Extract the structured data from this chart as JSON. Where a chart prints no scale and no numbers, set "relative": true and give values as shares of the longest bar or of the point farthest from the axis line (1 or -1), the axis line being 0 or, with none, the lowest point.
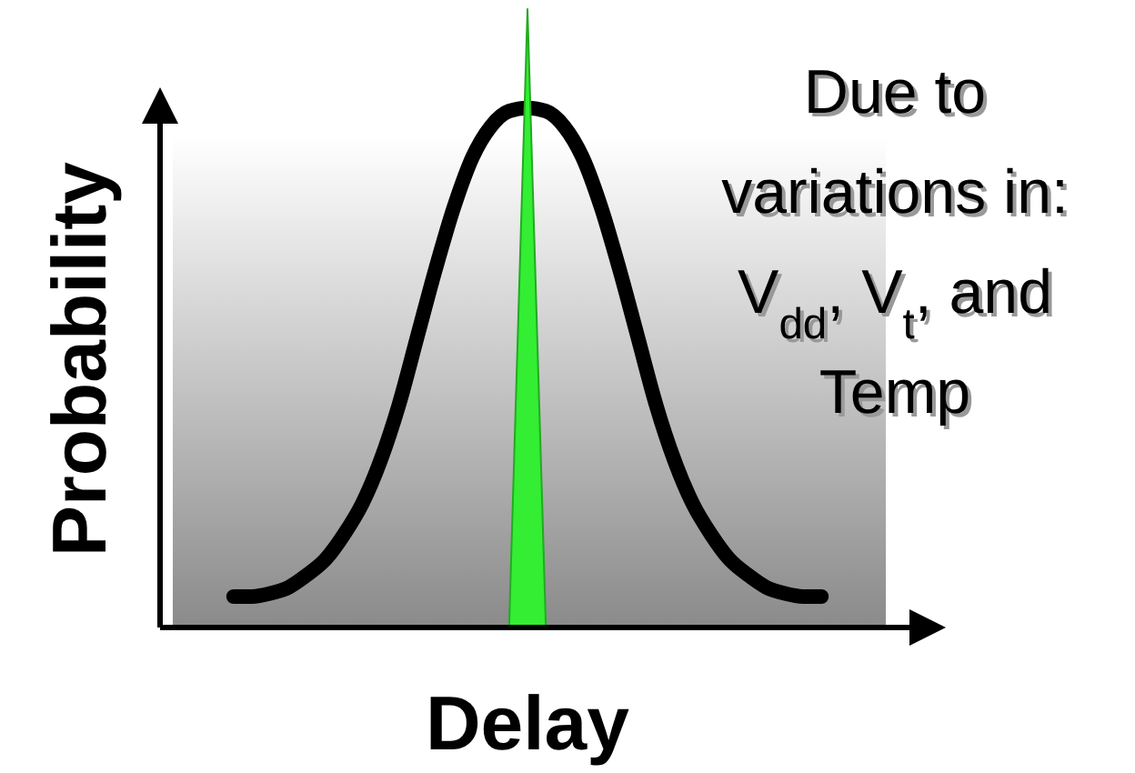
{
  "chart_data": {
    "type": "line",
    "relative": true,
    "xlabel": "Delay",
    "ylabel": "Probability",
    "categories": [
      null,
      null,
      null,
      null,
      null,
      null,
      null,
      null,
      null,
      null,
      null,
      null,
      null,
      null,
      null,
      null,
      null,
      null,
      null,
      null,
      null,
      null,
      null,
      null,
      null,
      null,
      null,
      null,
      null,
      null,
      null,
      null,
      null,
      null,
      null,
      null,
      null,
      null,
      null,
      null,
      null
    ],
    "series": [
      {
        "color": "#000000",
        "values": [
          null,
          null,
          null,
          null,
          0.05,
          0.05,
          0.055,
          0.065,
          0.085,
          0.11,
          0.15,
          0.2,
          0.27,
          0.36,
          0.47,
          0.58,
          0.68,
          0.76,
          0.81,
          0.835,
          0.84,
          0.835,
          0.81,
          0.76,
          0.68,
          0.58,
          0.47,
          0.36,
          0.27,
          0.2,
          0.15,
          0.11,
          0.085,
          0.065,
          0.055,
          0.05,
          0.05,
          null,
          null,
          null,
          null
        ]
      },
      {
        "type": "area",
        "color": "#33ee33",
        "values": [
          null,
          null,
          null,
          null,
          null,
          null,
          null,
          null,
          null,
          null,
          null,
          null,
          null,
          null,
          null,
          null,
          null,
          null,
          null,
          0,
          1,
          0,
          null,
          null,
          null,
          null,
          null,
          null,
          null,
          null,
          null,
          null,
          null,
          null,
          null,
          null,
          null,
          null,
          null,
          null,
          null
        ]
      }
    ],
    "annotations": [
      "Due to variations in: V$_{dd}$, V$_{t}$, and Temp"
    ]
  }
}
